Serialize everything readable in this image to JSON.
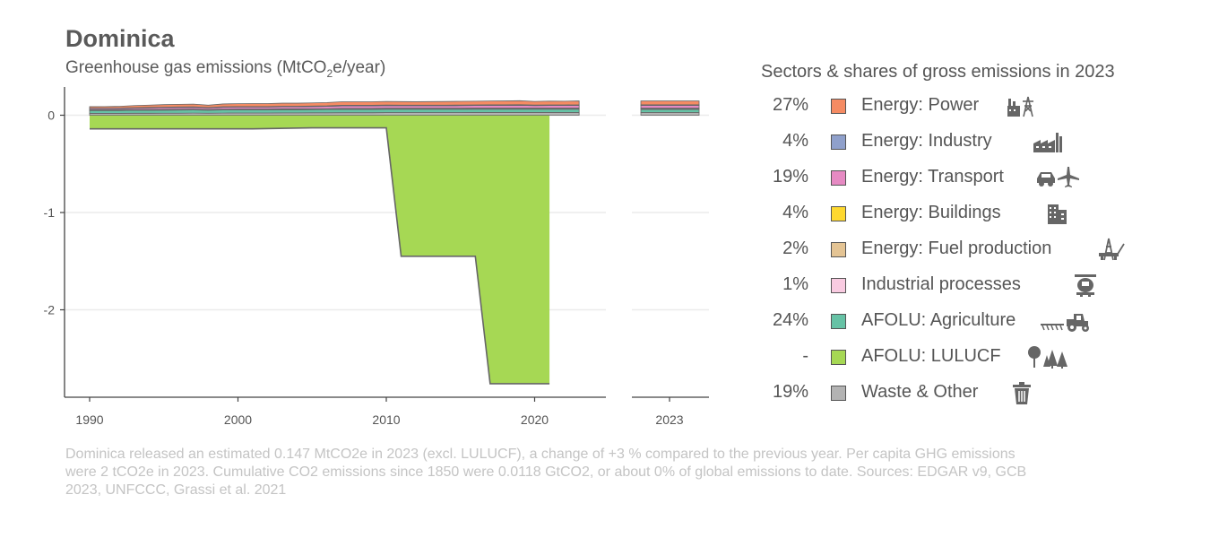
{
  "header": {
    "title": "Dominica",
    "subtitle_prefix": "Greenhouse gas emissions (MtCO",
    "subtitle_sub": "2",
    "subtitle_suffix": "e/year)"
  },
  "legend": {
    "title": "Sectors & shares of gross emissions in 2023",
    "items": [
      {
        "share": "27%",
        "label": "Energy: Power",
        "color": "#f58b63",
        "icon": "power-plant-icon"
      },
      {
        "share": "4%",
        "label": "Energy: Industry",
        "color": "#8fa0cb",
        "icon": "factory-icon"
      },
      {
        "share": "19%",
        "label": "Energy: Transport",
        "color": "#e68ac3",
        "icon": "car-plane-icon"
      },
      {
        "share": "4%",
        "label": "Energy: Buildings",
        "color": "#fed82f",
        "icon": "buildings-icon"
      },
      {
        "share": "2%",
        "label": "Energy: Fuel production",
        "color": "#e4c494",
        "icon": "oil-rig-icon"
      },
      {
        "share": "1%",
        "label": "Industrial processes",
        "color": "#f9cbe1",
        "icon": "cement-mixer-icon"
      },
      {
        "share": "24%",
        "label": "AFOLU: Agriculture",
        "color": "#66c2a5",
        "icon": "tractor-icon"
      },
      {
        "share": "-",
        "label": "AFOLU: LULUCF",
        "color": "#a6d854",
        "icon": "trees-icon"
      },
      {
        "share": "19%",
        "label": "Waste & Other",
        "color": "#b3b3b3",
        "icon": "trash-icon"
      }
    ]
  },
  "footnote": "Dominica released an estimated 0.147 MtCO2e in 2023 (excl. LULUCF), a change of +3 % compared to the previous year. Per capita GHG emissions were 2 tCO2e in 2023. Cumulative CO2 emissions since 1850 were 0.0118 GtCO2, or about 0% of global emissions to date. Sources: EDGAR v9, GCB 2023, UNFCCC, Grassi et al. 2021",
  "chart_data": {
    "type": "area",
    "stacked": true,
    "title": "Dominica",
    "ylabel": "Greenhouse gas emissions (MtCO2e/year)",
    "xlim": [
      1988,
      2025
    ],
    "ylim": [
      -2.9,
      0.3
    ],
    "x_ticks": [
      1990,
      2000,
      2010,
      2020
    ],
    "y_ticks": [
      0,
      -1,
      -2
    ],
    "x_tick_labels": [
      "1990",
      "2000",
      "2010",
      "2020"
    ],
    "y_tick_labels": [
      "0",
      "-1",
      "-2"
    ],
    "inset_x_tick_labels": [
      "2023"
    ],
    "grid": "horizontal",
    "legend_position": "right",
    "x": [
      1990,
      1991,
      1992,
      1993,
      1994,
      1995,
      1996,
      1997,
      1998,
      1999,
      2000,
      2001,
      2002,
      2003,
      2004,
      2005,
      2006,
      2007,
      2008,
      2009,
      2010,
      2011,
      2012,
      2013,
      2014,
      2015,
      2016,
      2017,
      2018,
      2019,
      2020,
      2021,
      2022,
      2023
    ],
    "positive_series": [
      {
        "name": "Waste & Other",
        "color": "#b3b3b3",
        "values": [
          0.019,
          0.019,
          0.019,
          0.02,
          0.02,
          0.021,
          0.021,
          0.022,
          0.021,
          0.022,
          0.023,
          0.023,
          0.023,
          0.024,
          0.024,
          0.025,
          0.025,
          0.026,
          0.026,
          0.026,
          0.027,
          0.027,
          0.027,
          0.027,
          0.027,
          0.027,
          0.028,
          0.028,
          0.028,
          0.028,
          0.028,
          0.028,
          0.028,
          0.028
        ]
      },
      {
        "name": "AFOLU: Agriculture",
        "color": "#66c2a5",
        "values": [
          0.03,
          0.03,
          0.03,
          0.031,
          0.031,
          0.031,
          0.032,
          0.032,
          0.031,
          0.032,
          0.032,
          0.032,
          0.032,
          0.033,
          0.033,
          0.033,
          0.034,
          0.034,
          0.034,
          0.034,
          0.035,
          0.035,
          0.035,
          0.035,
          0.035,
          0.035,
          0.035,
          0.035,
          0.035,
          0.035,
          0.035,
          0.035,
          0.035,
          0.035
        ]
      },
      {
        "name": "Industrial processes",
        "color": "#f9cbe1",
        "values": [
          0.001,
          0.001,
          0.001,
          0.001,
          0.001,
          0.001,
          0.001,
          0.001,
          0.001,
          0.001,
          0.001,
          0.001,
          0.001,
          0.001,
          0.001,
          0.001,
          0.001,
          0.001,
          0.001,
          0.001,
          0.001,
          0.001,
          0.001,
          0.001,
          0.001,
          0.001,
          0.001,
          0.001,
          0.001,
          0.001,
          0.001,
          0.001,
          0.001,
          0.001
        ]
      },
      {
        "name": "Energy: Fuel production",
        "color": "#e4c494",
        "values": [
          0.002,
          0.002,
          0.002,
          0.002,
          0.002,
          0.002,
          0.002,
          0.002,
          0.002,
          0.002,
          0.002,
          0.002,
          0.002,
          0.002,
          0.002,
          0.002,
          0.002,
          0.003,
          0.003,
          0.003,
          0.003,
          0.003,
          0.003,
          0.003,
          0.003,
          0.003,
          0.003,
          0.003,
          0.003,
          0.003,
          0.003,
          0.003,
          0.003,
          0.003
        ]
      },
      {
        "name": "Energy: Buildings",
        "color": "#fed82f",
        "values": [
          0.004,
          0.004,
          0.004,
          0.004,
          0.004,
          0.005,
          0.005,
          0.005,
          0.004,
          0.005,
          0.005,
          0.005,
          0.005,
          0.005,
          0.005,
          0.005,
          0.005,
          0.006,
          0.006,
          0.006,
          0.006,
          0.006,
          0.006,
          0.006,
          0.006,
          0.006,
          0.006,
          0.006,
          0.006,
          0.006,
          0.006,
          0.006,
          0.006,
          0.006
        ]
      },
      {
        "name": "Energy: Transport",
        "color": "#e68ac3",
        "values": [
          0.012,
          0.012,
          0.013,
          0.015,
          0.017,
          0.018,
          0.019,
          0.019,
          0.016,
          0.02,
          0.021,
          0.021,
          0.021,
          0.022,
          0.022,
          0.023,
          0.024,
          0.026,
          0.026,
          0.026,
          0.027,
          0.026,
          0.026,
          0.026,
          0.026,
          0.027,
          0.027,
          0.028,
          0.028,
          0.029,
          0.026,
          0.027,
          0.027,
          0.028
        ]
      },
      {
        "name": "Energy: Industry",
        "color": "#8fa0cb",
        "values": [
          0.004,
          0.004,
          0.004,
          0.004,
          0.005,
          0.005,
          0.005,
          0.005,
          0.004,
          0.005,
          0.005,
          0.005,
          0.005,
          0.005,
          0.005,
          0.005,
          0.005,
          0.006,
          0.006,
          0.006,
          0.006,
          0.006,
          0.006,
          0.006,
          0.006,
          0.006,
          0.006,
          0.006,
          0.006,
          0.006,
          0.006,
          0.006,
          0.006,
          0.006
        ]
      },
      {
        "name": "Energy: Power",
        "color": "#f58b63",
        "values": [
          0.016,
          0.017,
          0.018,
          0.022,
          0.024,
          0.026,
          0.027,
          0.028,
          0.024,
          0.029,
          0.03,
          0.031,
          0.031,
          0.032,
          0.032,
          0.033,
          0.034,
          0.036,
          0.036,
          0.036,
          0.037,
          0.036,
          0.035,
          0.036,
          0.037,
          0.038,
          0.038,
          0.039,
          0.04,
          0.041,
          0.037,
          0.039,
          0.038,
          0.04
        ]
      }
    ],
    "negative_series": {
      "name": "AFOLU: LULUCF",
      "color": "#a6d854",
      "x": [
        1990,
        2001,
        2005,
        2010,
        2011,
        2016,
        2017,
        2021
      ],
      "values": [
        -0.14,
        -0.14,
        -0.13,
        -0.13,
        -1.45,
        -1.45,
        -2.76,
        -2.76
      ]
    }
  }
}
